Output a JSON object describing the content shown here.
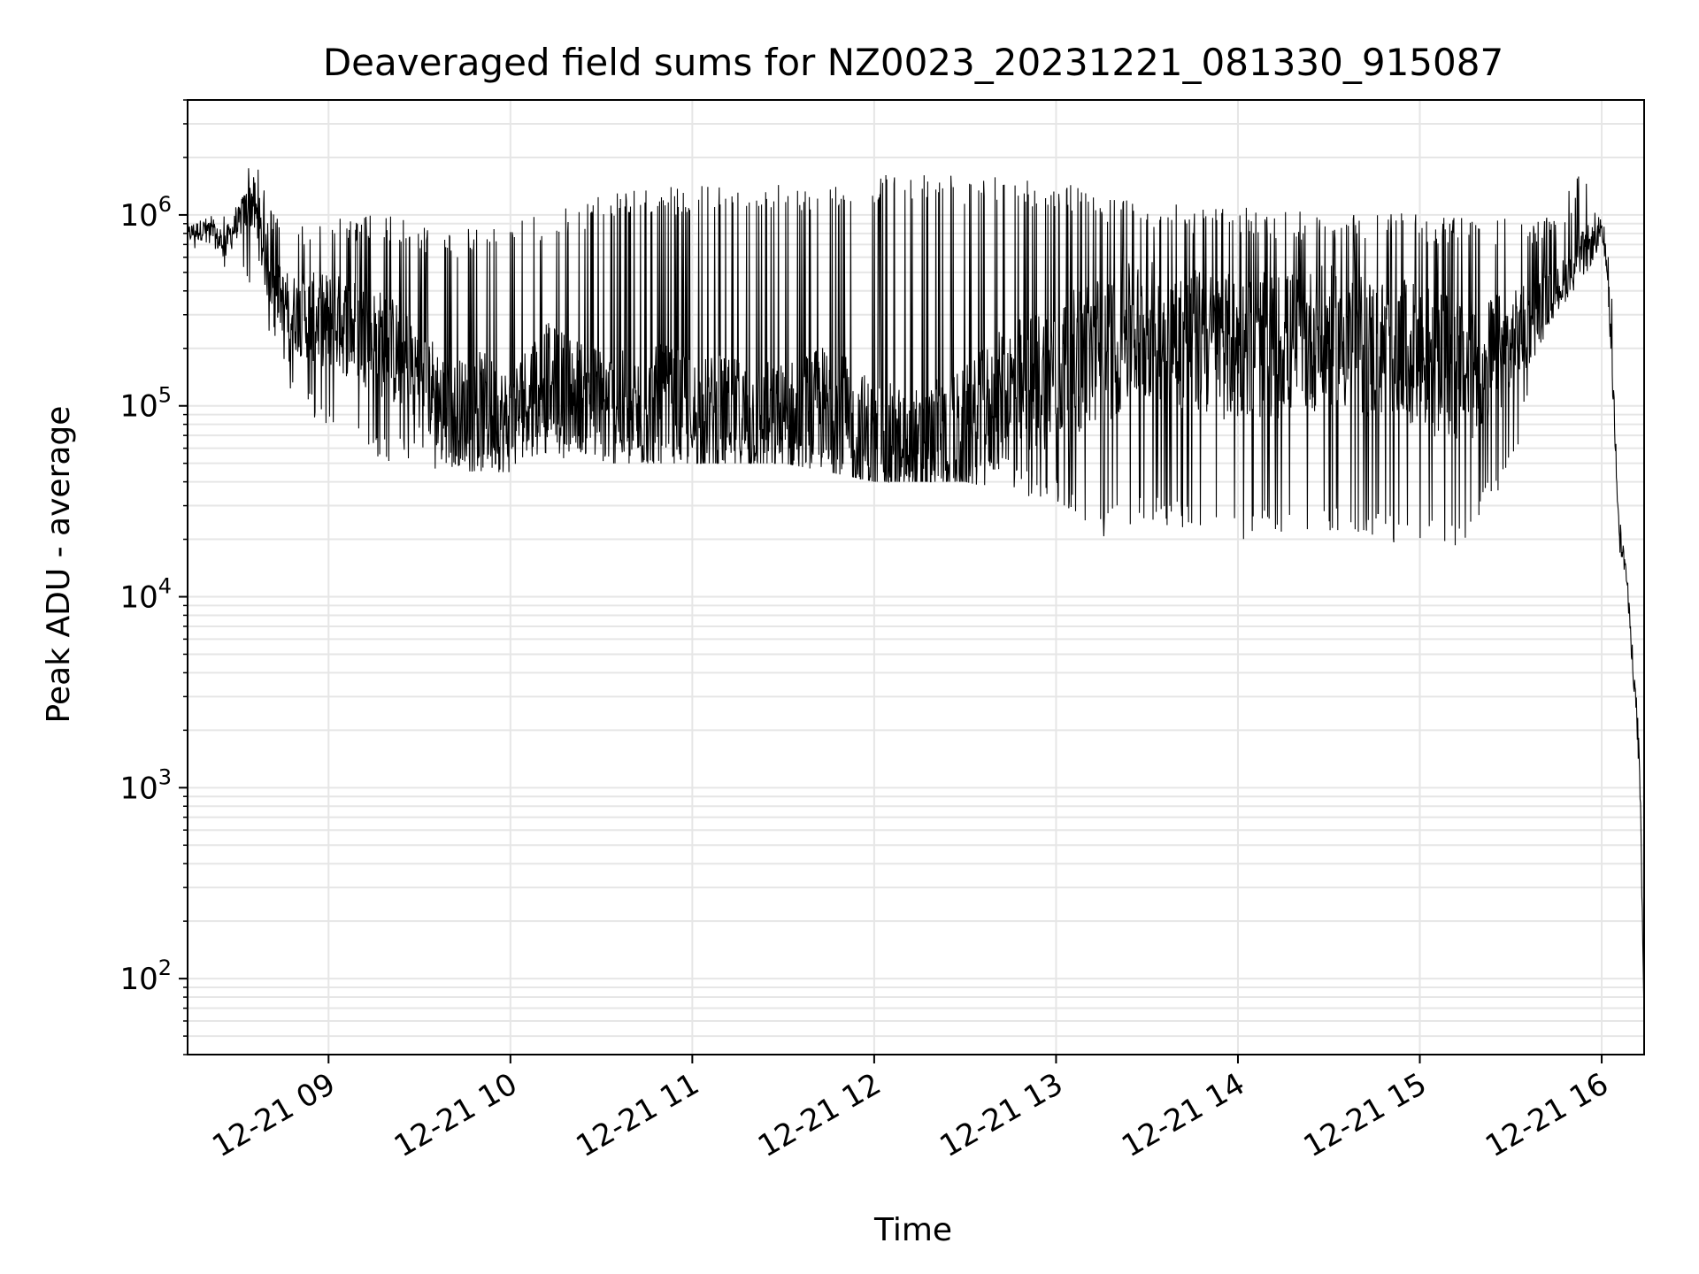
{
  "chart_data": {
    "type": "line",
    "title": "Deaveraged field sums for NZ0023_20231221_081330_915087",
    "xlabel": "Time",
    "ylabel": "Peak ADU - average",
    "yscale": "log",
    "ylim": [
      40,
      4000000
    ],
    "xlim": [
      "2023-12-21 08:13:30",
      "2023-12-21 16:14:00"
    ],
    "grid": true,
    "line_color": "#000000",
    "grid_color": "#e6e6e6",
    "x_ticks": [
      {
        "x": "2023-12-21 09:00",
        "label": "12-21 09"
      },
      {
        "x": "2023-12-21 10:00",
        "label": "12-21 10"
      },
      {
        "x": "2023-12-21 11:00",
        "label": "12-21 11"
      },
      {
        "x": "2023-12-21 12:00",
        "label": "12-21 12"
      },
      {
        "x": "2023-12-21 13:00",
        "label": "12-21 13"
      },
      {
        "x": "2023-12-21 14:00",
        "label": "12-21 14"
      },
      {
        "x": "2023-12-21 15:00",
        "label": "12-21 15"
      },
      {
        "x": "2023-12-21 16:00",
        "label": "12-21 16"
      }
    ],
    "y_ticks": [
      {
        "value": 100,
        "base": "10",
        "exp": "2"
      },
      {
        "value": 1000,
        "base": "10",
        "exp": "3"
      },
      {
        "value": 10000,
        "base": "10",
        "exp": "4"
      },
      {
        "value": 100000,
        "base": "10",
        "exp": "5"
      },
      {
        "value": 1000000,
        "base": "10",
        "exp": "6"
      }
    ],
    "series": [
      {
        "x": [
          "2023-12-21 08:13:30",
          "2023-12-21 08:20",
          "2023-12-21 08:25",
          "2023-12-21 08:30",
          "2023-12-21 08:35",
          "2023-12-21 08:40",
          "2023-12-21 08:45",
          "2023-12-21 08:50",
          "2023-12-21 09:00",
          "2023-12-21 09:10",
          "2023-12-21 09:20",
          "2023-12-21 09:30",
          "2023-12-21 09:40",
          "2023-12-21 09:50",
          "2023-12-21 10:00",
          "2023-12-21 10:10",
          "2023-12-21 10:20",
          "2023-12-21 10:30",
          "2023-12-21 10:40",
          "2023-12-21 10:50",
          "2023-12-21 11:00",
          "2023-12-21 11:15",
          "2023-12-21 11:30",
          "2023-12-21 11:45",
          "2023-12-21 12:00",
          "2023-12-21 12:15",
          "2023-12-21 12:30",
          "2023-12-21 12:45",
          "2023-12-21 13:00",
          "2023-12-21 13:15",
          "2023-12-21 13:30",
          "2023-12-21 13:45",
          "2023-12-21 14:00",
          "2023-12-21 14:15",
          "2023-12-21 14:30",
          "2023-12-21 14:45",
          "2023-12-21 15:00",
          "2023-12-21 15:15",
          "2023-12-21 15:30",
          "2023-12-21 15:45",
          "2023-12-21 15:55",
          "2023-12-21 16:00",
          "2023-12-21 16:02",
          "2023-12-21 16:04",
          "2023-12-21 16:06",
          "2023-12-21 16:08",
          "2023-12-21 16:10",
          "2023-12-21 16:12",
          "2023-12-21 16:13",
          "2023-12-21 16:14"
        ],
        "y": [
          800000,
          850000,
          700000,
          900000,
          1200000,
          500000,
          350000,
          300000,
          280000,
          250000,
          200000,
          150000,
          90000,
          100000,
          80000,
          150000,
          120000,
          100000,
          90000,
          100000,
          90000,
          85000,
          80000,
          100000,
          60000,
          55000,
          70000,
          120000,
          150000,
          200000,
          250000,
          220000,
          200000,
          210000,
          230000,
          200000,
          180000,
          150000,
          200000,
          400000,
          650000,
          800000,
          500000,
          100000,
          20000,
          14000,
          5000,
          2000,
          500,
          60
        ],
        "min_y": [
          600000,
          600000,
          500000,
          600000,
          400000,
          250000,
          150000,
          100000,
          70000,
          60000,
          50000,
          45000,
          45000,
          45000,
          45000,
          55000,
          50000,
          50000,
          50000,
          50000,
          50000,
          50000,
          50000,
          45000,
          40000,
          40000,
          40000,
          35000,
          30000,
          20000,
          25000,
          22000,
          20000,
          20000,
          22000,
          20000,
          18000,
          18000,
          45000,
          300000,
          500000,
          700000,
          400000,
          80000,
          15000,
          12000,
          4000,
          1500,
          300,
          50
        ],
        "max_y": [
          1000000,
          1100000,
          1000000,
          1300000,
          2300000,
          1200000,
          850000,
          900000,
          1000000,
          1000000,
          1000000,
          900000,
          800000,
          900000,
          900000,
          1000000,
          1100000,
          1300000,
          1400000,
          1400000,
          1400000,
          1500000,
          1500000,
          1400000,
          1600000,
          1700000,
          1600000,
          1600000,
          1500000,
          1300000,
          1200000,
          1100000,
          1100000,
          1050000,
          1050000,
          1050000,
          1000000,
          1000000,
          950000,
          1000000,
          2000000,
          1100000,
          900000,
          250000,
          30000,
          22000,
          8000,
          3000,
          1000,
          80
        ]
      }
    ]
  }
}
